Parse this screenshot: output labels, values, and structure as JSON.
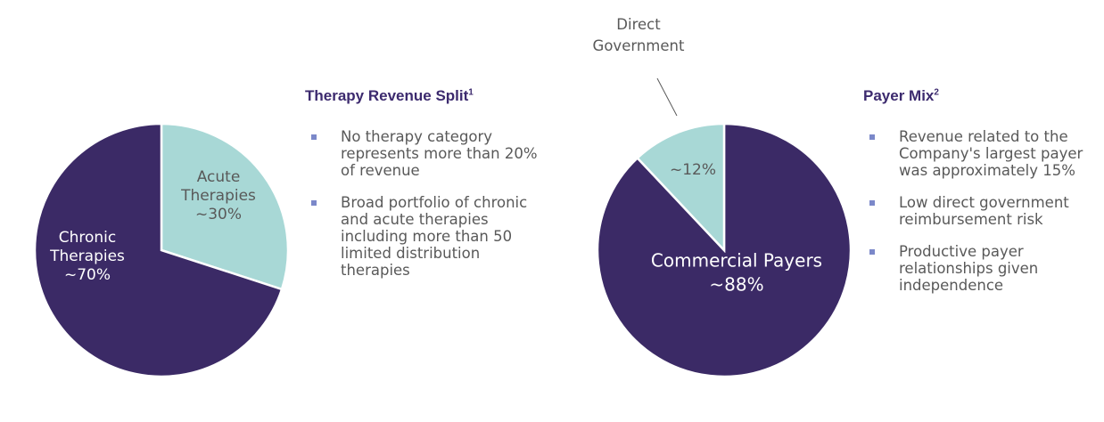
{
  "colors": {
    "dark": "#3b2a66",
    "light": "#a8d8d6",
    "title": "#3c2a6e",
    "bullet": "#7b88c9",
    "text": "#595959"
  },
  "chart_data": [
    {
      "type": "pie",
      "title": "Therapy Revenue Split",
      "title_note": "1",
      "slices": [
        {
          "name": "Acute Therapies",
          "label_lines": [
            "Acute",
            "Therapies",
            "~30%"
          ],
          "value": 30,
          "color": "#a8d8d6"
        },
        {
          "name": "Chronic Therapies",
          "label_lines": [
            "Chronic",
            "Therapies",
            "~70%"
          ],
          "value": 70,
          "color": "#3b2a66"
        }
      ]
    },
    {
      "type": "pie",
      "title": "Payer Mix",
      "title_note": "2",
      "slices": [
        {
          "name": "Commercial Payers",
          "label_lines": [
            "Commercial Payers",
            "~88%"
          ],
          "value": 88,
          "color": "#3b2a66"
        },
        {
          "name": "Direct Government",
          "label_lines": [
            "~12%"
          ],
          "value": 12,
          "color": "#a8d8d6"
        }
      ],
      "annotations": [
        {
          "text_lines": [
            "Direct",
            "Government"
          ]
        }
      ]
    }
  ],
  "panels": {
    "therapy": {
      "bullets": [
        "No therapy category represents more than 20% of revenue",
        "Broad portfolio of chronic and acute therapies including more than 50 limited distribution therapies"
      ]
    },
    "payer": {
      "bullets": [
        "Revenue related to the Company's largest payer was approximately 15%",
        "Low direct government reimbursement risk",
        "Productive payer relationships given independence"
      ]
    }
  }
}
